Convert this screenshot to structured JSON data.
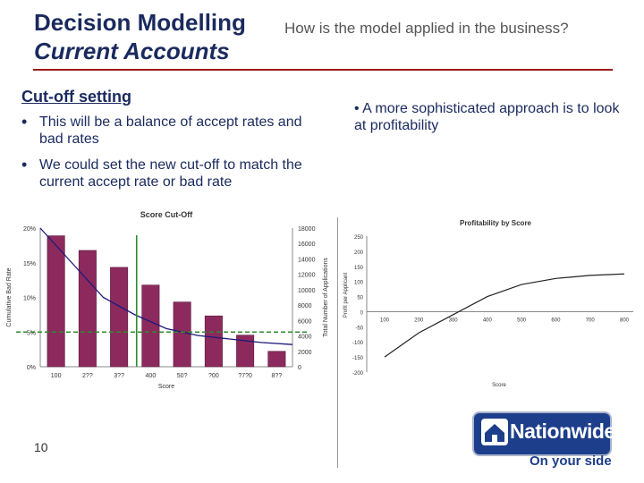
{
  "header": {
    "title_line1": "Decision Modelling",
    "title_line2": "Current Accounts",
    "subtitle": "How is the model applied in the business?"
  },
  "left": {
    "heading": "Cut-off setting",
    "bullets": [
      "This will be a balance of accept rates and bad rates",
      "We could set the new cut-off to match the current accept rate or bad rate"
    ]
  },
  "right": {
    "bullets": [
      "A more sophisticated approach is to look at profitability"
    ]
  },
  "footer": {
    "page_number": "10",
    "logo_text": "Nationwide",
    "tagline": "On your side"
  },
  "colors": {
    "title": "#1a2a5e",
    "rule": "#9b1b1b",
    "bar": "#8c2a5e",
    "curve": "#1a1a7a",
    "cutoff_line": "#2e8b2e",
    "dashed_line": "#2e8b2e",
    "brand": "#1d3e8a"
  },
  "chart_data": [
    {
      "type": "bar",
      "title": "Score Cut-Off",
      "xlabel": "Score",
      "ylabel_left": "Cumulative Bad Rate",
      "ylabel_right": "Total Number of Applications",
      "categories": [
        "100",
        "200",
        "300",
        "400",
        "500",
        "600",
        "700",
        "800"
      ],
      "x_tick_labels": [
        "100",
        "2??",
        "3??",
        "400",
        "50?",
        "?00",
        "?7?0",
        "8??"
      ],
      "series": [
        {
          "axis": "right",
          "values": [
            17000,
            15100,
            12900,
            10600,
            8400,
            6600,
            4100,
            2000
          ]
        }
      ],
      "curve": {
        "axis": "left",
        "values": [
          0.2,
          0.15,
          0.1,
          0.075,
          0.055,
          0.045,
          0.04,
          0.035,
          0.032
        ]
      },
      "cutoff_score": "400",
      "reference_rate": 0.05,
      "ylim_left": [
        0,
        0.2
      ],
      "ylim_right": [
        0,
        18000
      ],
      "yticks_left": [
        "0%",
        "5%",
        "10%",
        "15%",
        "20%"
      ],
      "yticks_right": [
        "0",
        "2000",
        "4000",
        "6000",
        "8000",
        "10000",
        "12000",
        "14000",
        "16000",
        "18000"
      ]
    },
    {
      "type": "line",
      "title": "Profitability by Score",
      "xlabel": "Score",
      "ylabel": "Profit per Applicant",
      "x": [
        100,
        200,
        300,
        400,
        500,
        600,
        700,
        800
      ],
      "y": [
        -150,
        -70,
        -10,
        50,
        90,
        110,
        120,
        125
      ],
      "xticks": [
        "100",
        "200",
        "300",
        "400",
        "500",
        "600",
        "700",
        "800"
      ],
      "yticks": [
        "-200",
        "-150",
        "-100",
        "-50",
        "0",
        "50",
        "100",
        "150",
        "200",
        "250"
      ],
      "ylim": [
        -200,
        250
      ]
    }
  ]
}
